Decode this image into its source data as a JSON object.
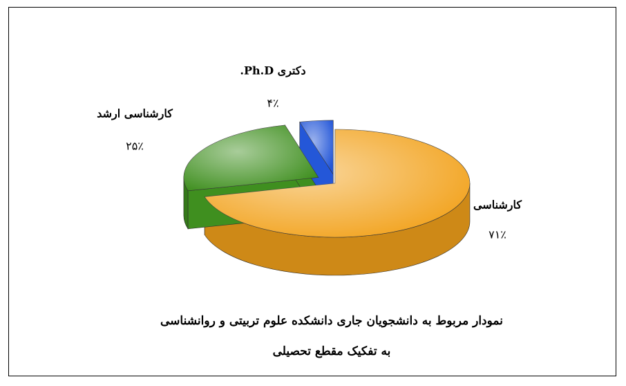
{
  "chart_data": {
    "type": "pie",
    "title": "نمودار مربوط به دانشجویان جاری دانشکده علوم تربیتی و روانشناسی به تفکیک مقطع تحصیلی",
    "categories": [
      "کارشناسی",
      "کارشناسی ارشد",
      "دکتری Ph.D."
    ],
    "values": [
      71,
      25,
      4
    ],
    "value_labels": [
      "۷۱٪",
      "۲۵٪",
      "۴٪"
    ],
    "colors": [
      "#f2a21c",
      "#3f8f1f",
      "#2457d8"
    ]
  }
}
